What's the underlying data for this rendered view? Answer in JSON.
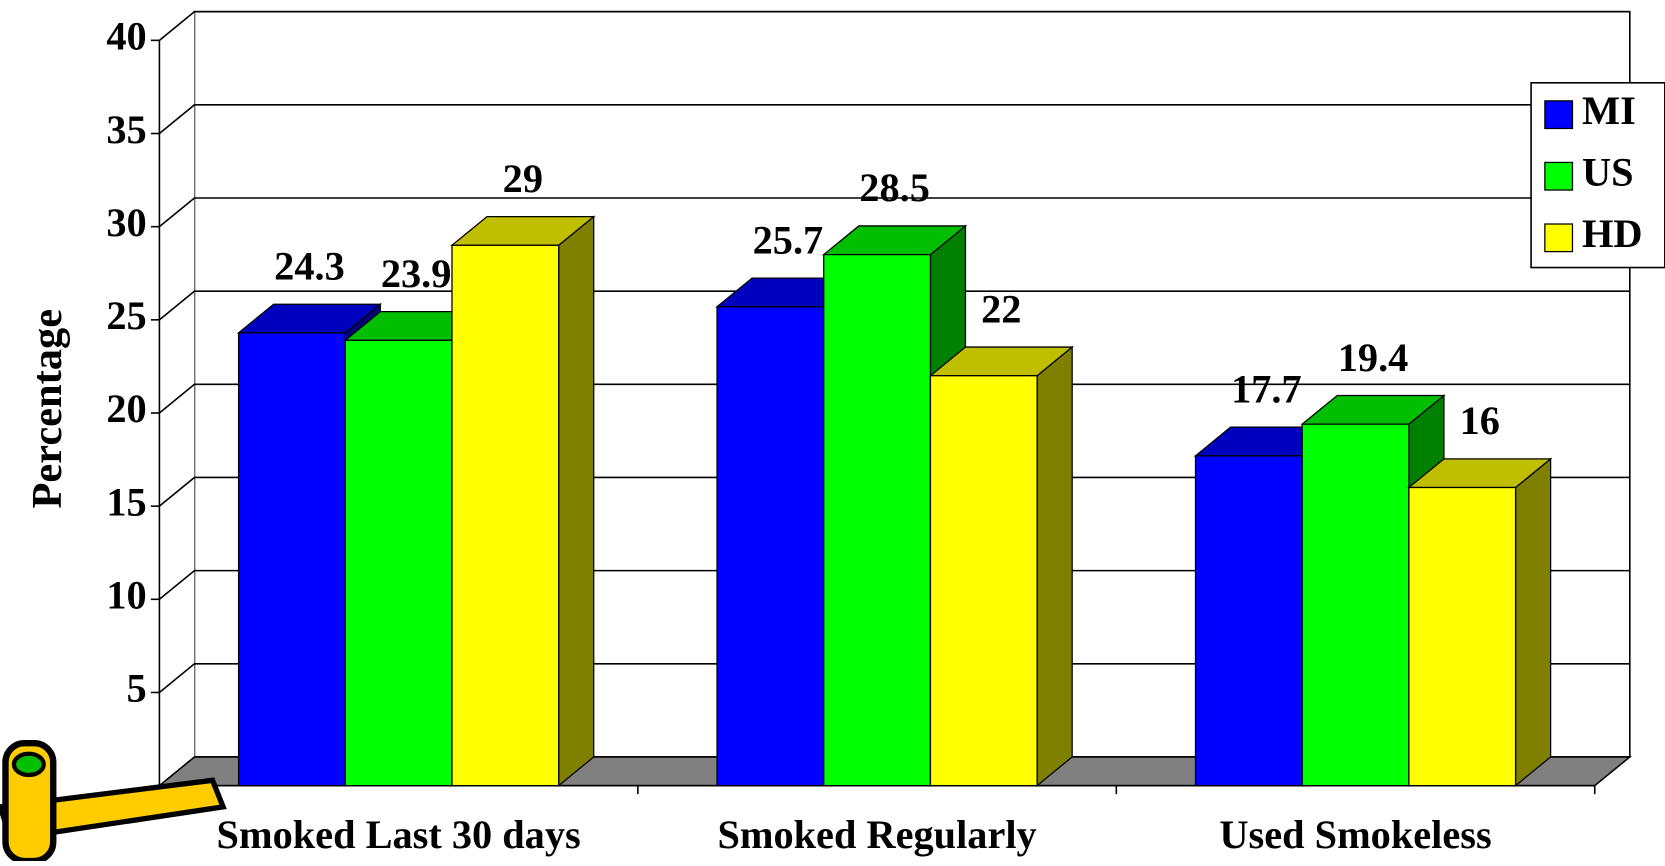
{
  "chart_data": {
    "type": "bar3d",
    "y_label": "Percentage",
    "categories": [
      "Smoked Last 30 days",
      "Smoked Regularly",
      "Used Smokeless"
    ],
    "series": [
      {
        "name": "MI",
        "color": "#0000ff",
        "values": [
          24.3,
          25.7,
          17.7
        ]
      },
      {
        "name": "US",
        "color": "#00ff00",
        "values": [
          23.9,
          28.5,
          19.4
        ]
      },
      {
        "name": "HD",
        "color": "#ffff00",
        "values": [
          29,
          22,
          16
        ]
      }
    ],
    "ylim": [
      0,
      40
    ],
    "yticks": [
      5,
      10,
      15,
      20,
      25,
      30,
      35,
      40
    ],
    "grid": true,
    "legend": "right"
  }
}
